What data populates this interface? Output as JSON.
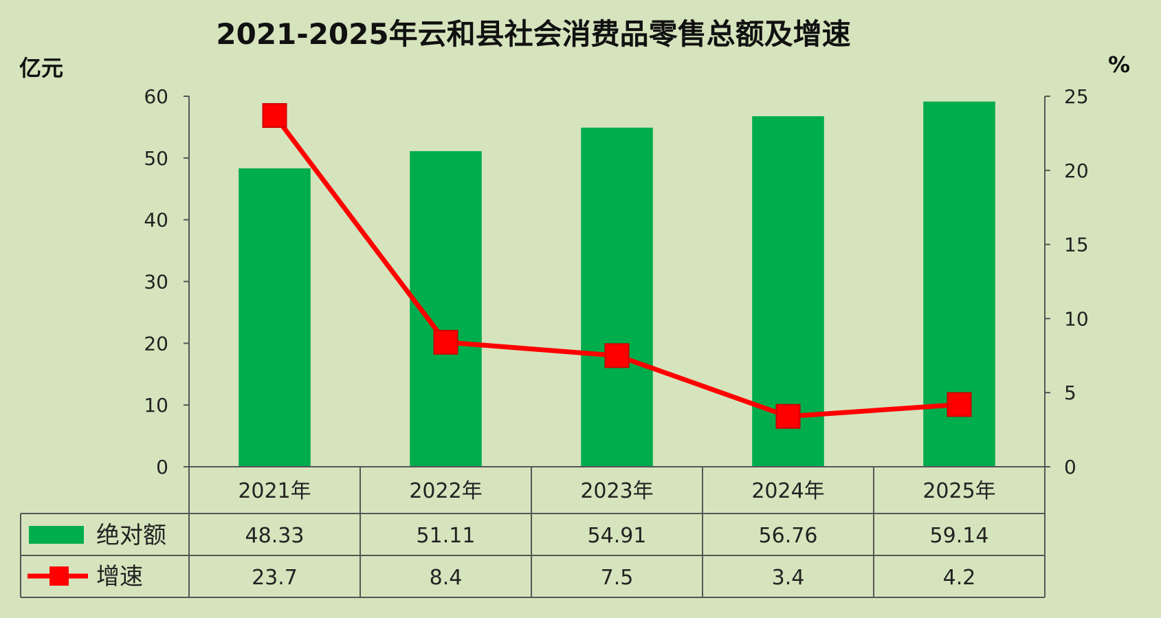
{
  "chart_data": {
    "type": "bar",
    "title": "2021-2025年云和县社会消费品零售总额及增速",
    "left_unit": "亿元",
    "right_unit": "%",
    "categories": [
      "2021年",
      "2022年",
      "2023年",
      "2024年",
      "2025年"
    ],
    "ylim_left": [
      0,
      60
    ],
    "ylim_right": [
      0,
      25
    ],
    "yticks_left": [
      "0",
      "10",
      "20",
      "30",
      "40",
      "50",
      "60"
    ],
    "yticks_right": [
      "0",
      "5",
      "10",
      "15",
      "20",
      "25"
    ],
    "series": [
      {
        "name": "绝对额",
        "type": "bar",
        "axis": "left",
        "color": "#00ad4c",
        "values": [
          48.33,
          51.11,
          54.91,
          56.76,
          59.14
        ],
        "labels": [
          "48.33",
          "51.11",
          "54.91",
          "56.76",
          "59.14"
        ]
      },
      {
        "name": "增速",
        "type": "line",
        "axis": "right",
        "color": "#ff0000",
        "marker": "square",
        "values": [
          23.7,
          8.4,
          7.5,
          3.4,
          4.2
        ],
        "labels": [
          "23.7",
          "8.4",
          "7.5",
          "3.4",
          "4.2"
        ]
      }
    ],
    "grid": false,
    "legend": "data-table"
  },
  "colors": {
    "background": "#d6e4bd",
    "bar": "#00ad4c",
    "line": "#ff0000"
  }
}
